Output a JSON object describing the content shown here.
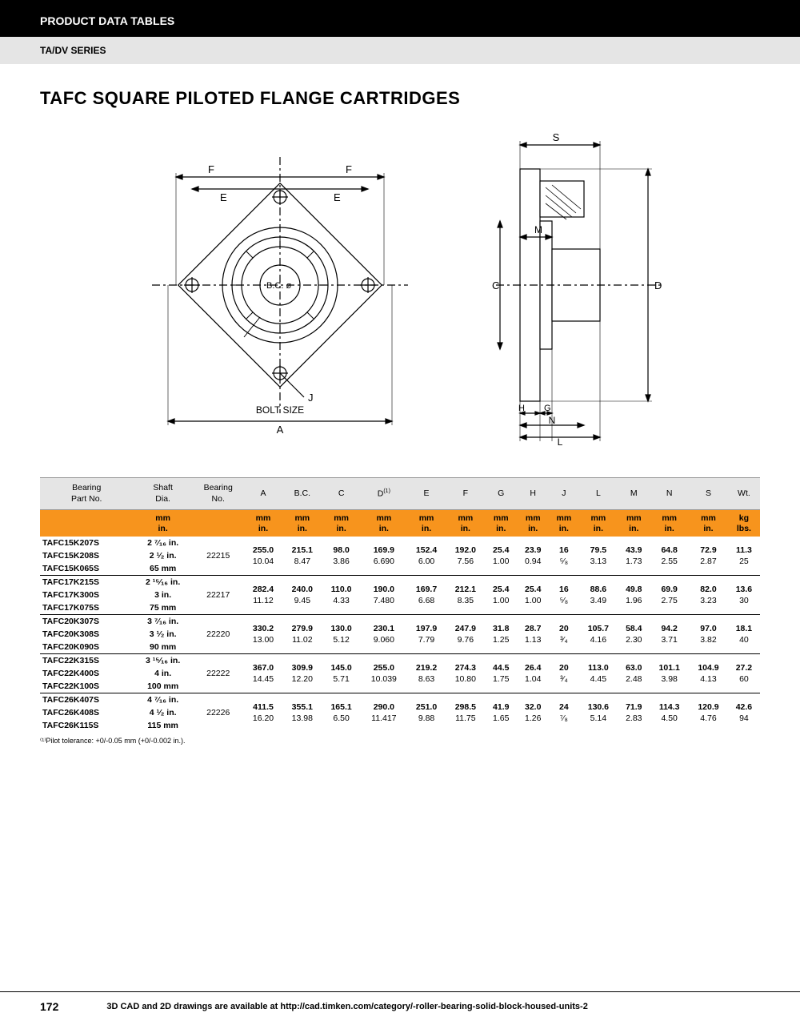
{
  "header": "PRODUCT DATA TABLES",
  "series": "TA/DV SERIES",
  "title": "TAFC SQUARE PILOTED FLANGE CARTRIDGES",
  "diagram_labels": {
    "F1": "F",
    "E1": "E",
    "F2": "F",
    "E2": "E",
    "BC": "B.C. ø",
    "J": "J",
    "bolt": "BOLT SIZE",
    "A": "A",
    "S": "S",
    "C": "C",
    "D": "D",
    "M": "M",
    "H": "H",
    "G": "G",
    "N": "N",
    "L": "L"
  },
  "columns": [
    "Bearing\nPart No.",
    "Shaft\nDia.",
    "Bearing\nNo.",
    "A",
    "B.C.",
    "C",
    "D⁽¹⁾",
    "E",
    "F",
    "G",
    "H",
    "J",
    "L",
    "M",
    "N",
    "S",
    "Wt."
  ],
  "units_row": [
    "",
    "mm\nin.",
    "",
    "mm\nin.",
    "mm\nin.",
    "mm\nin.",
    "mm\nin.",
    "mm\nin.",
    "mm\nin.",
    "mm\nin.",
    "mm\nin.",
    "mm\nin.",
    "mm\nin.",
    "mm\nin.",
    "mm\nin.",
    "mm\nin.",
    "kg\nlbs."
  ],
  "groups": [
    {
      "parts": [
        [
          "TAFC15K207S",
          "2 ⁷⁄₁₆ in."
        ],
        [
          "TAFC15K208S",
          "2 ¹⁄₂ in."
        ],
        [
          "TAFC15K065S",
          "65 mm"
        ]
      ],
      "bearing": "22215",
      "dims": [
        [
          "255.0",
          "10.04"
        ],
        [
          "215.1",
          "8.47"
        ],
        [
          "98.0",
          "3.86"
        ],
        [
          "169.9",
          "6.690"
        ],
        [
          "152.4",
          "6.00"
        ],
        [
          "192.0",
          "7.56"
        ],
        [
          "25.4",
          "1.00"
        ],
        [
          "23.9",
          "0.94"
        ],
        [
          "16",
          "⁵⁄₈"
        ],
        [
          "79.5",
          "3.13"
        ],
        [
          "43.9",
          "1.73"
        ],
        [
          "64.8",
          "2.55"
        ],
        [
          "72.9",
          "2.87"
        ],
        [
          "11.3",
          "25"
        ]
      ]
    },
    {
      "parts": [
        [
          "TAFC17K215S",
          "2 ¹⁵⁄₁₆ in."
        ],
        [
          "TAFC17K300S",
          "3 in."
        ],
        [
          "TAFC17K075S",
          "75 mm"
        ]
      ],
      "bearing": "22217",
      "dims": [
        [
          "282.4",
          "11.12"
        ],
        [
          "240.0",
          "9.45"
        ],
        [
          "110.0",
          "4.33"
        ],
        [
          "190.0",
          "7.480"
        ],
        [
          "169.7",
          "6.68"
        ],
        [
          "212.1",
          "8.35"
        ],
        [
          "25.4",
          "1.00"
        ],
        [
          "25.4",
          "1.00"
        ],
        [
          "16",
          "⁵⁄₈"
        ],
        [
          "88.6",
          "3.49"
        ],
        [
          "49.8",
          "1.96"
        ],
        [
          "69.9",
          "2.75"
        ],
        [
          "82.0",
          "3.23"
        ],
        [
          "13.6",
          "30"
        ]
      ]
    },
    {
      "parts": [
        [
          "TAFC20K307S",
          "3 ⁷⁄₁₆ in."
        ],
        [
          "TAFC20K308S",
          "3 ¹⁄₂ in."
        ],
        [
          "TAFC20K090S",
          "90 mm"
        ]
      ],
      "bearing": "22220",
      "dims": [
        [
          "330.2",
          "13.00"
        ],
        [
          "279.9",
          "11.02"
        ],
        [
          "130.0",
          "5.12"
        ],
        [
          "230.1",
          "9.060"
        ],
        [
          "197.9",
          "7.79"
        ],
        [
          "247.9",
          "9.76"
        ],
        [
          "31.8",
          "1.25"
        ],
        [
          "28.7",
          "1.13"
        ],
        [
          "20",
          "³⁄₄"
        ],
        [
          "105.7",
          "4.16"
        ],
        [
          "58.4",
          "2.30"
        ],
        [
          "94.2",
          "3.71"
        ],
        [
          "97.0",
          "3.82"
        ],
        [
          "18.1",
          "40"
        ]
      ]
    },
    {
      "parts": [
        [
          "TAFC22K315S",
          "3 ¹⁵⁄₁₆ in."
        ],
        [
          "TAFC22K400S",
          "4 in."
        ],
        [
          "TAFC22K100S",
          "100 mm"
        ]
      ],
      "bearing": "22222",
      "dims": [
        [
          "367.0",
          "14.45"
        ],
        [
          "309.9",
          "12.20"
        ],
        [
          "145.0",
          "5.71"
        ],
        [
          "255.0",
          "10.039"
        ],
        [
          "219.2",
          "8.63"
        ],
        [
          "274.3",
          "10.80"
        ],
        [
          "44.5",
          "1.75"
        ],
        [
          "26.4",
          "1.04"
        ],
        [
          "20",
          "³⁄₄"
        ],
        [
          "113.0",
          "4.45"
        ],
        [
          "63.0",
          "2.48"
        ],
        [
          "101.1",
          "3.98"
        ],
        [
          "104.9",
          "4.13"
        ],
        [
          "27.2",
          "60"
        ]
      ]
    },
    {
      "parts": [
        [
          "TAFC26K407S",
          "4 ⁷⁄₁₆ in."
        ],
        [
          "TAFC26K408S",
          "4 ¹⁄₂ in."
        ],
        [
          "TAFC26K115S",
          "115 mm"
        ]
      ],
      "bearing": "22226",
      "dims": [
        [
          "411.5",
          "16.20"
        ],
        [
          "355.1",
          "13.98"
        ],
        [
          "165.1",
          "6.50"
        ],
        [
          "290.0",
          "11.417"
        ],
        [
          "251.0",
          "9.88"
        ],
        [
          "298.5",
          "11.75"
        ],
        [
          "41.9",
          "1.65"
        ],
        [
          "32.0",
          "1.26"
        ],
        [
          "24",
          "⁷⁄₈"
        ],
        [
          "130.6",
          "5.14"
        ],
        [
          "71.9",
          "2.83"
        ],
        [
          "114.3",
          "4.50"
        ],
        [
          "120.9",
          "4.76"
        ],
        [
          "42.6",
          "94"
        ]
      ]
    }
  ],
  "footnote": "⁽¹⁾Pilot tolerance: +0/-0.05 mm (+0/-0.002 in.).",
  "page_number": "172",
  "footer_text": "3D CAD and 2D drawings are available at http://cad.timken.com/category/-roller-bearing-solid-block-housed-units-2"
}
